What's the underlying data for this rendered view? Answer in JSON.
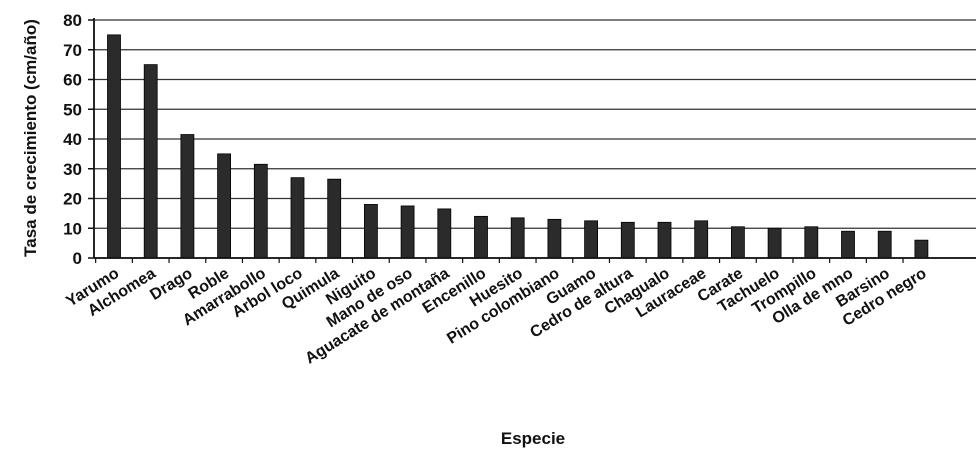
{
  "chart_data": {
    "type": "bar",
    "title": "",
    "xlabel": "Especie",
    "ylabel": "Tasa de crecimiento (cm/año)",
    "ylim": [
      0,
      80
    ],
    "yticks": [
      0,
      10,
      20,
      30,
      40,
      50,
      60,
      70,
      80
    ],
    "grid": true,
    "categories": [
      "Yarumo",
      "Alchomea",
      "Drago",
      "Roble",
      "Amarrabollo",
      "Arbol loco",
      "Quimula",
      "Niguito",
      "Mano de oso",
      "Aguacate de montaña",
      "Encenillo",
      "Huesito",
      "Pino colombiano",
      "Guamo",
      "Cedro de altura",
      "Chagualo",
      "Lauraceae",
      "Carate",
      "Tachuelo",
      "Trompillo",
      "Olla de mno",
      "Barsino",
      "Cedro negro"
    ],
    "values": [
      75,
      65,
      41.5,
      35,
      31.5,
      27,
      26.5,
      18,
      17.5,
      16.5,
      14,
      13.5,
      13,
      12.5,
      12,
      12,
      12.5,
      10.5,
      10,
      10.5,
      9,
      9,
      6
    ],
    "colors": {
      "bar": "#2b2b2b",
      "grid": "#333333",
      "axis": "#111111"
    }
  }
}
